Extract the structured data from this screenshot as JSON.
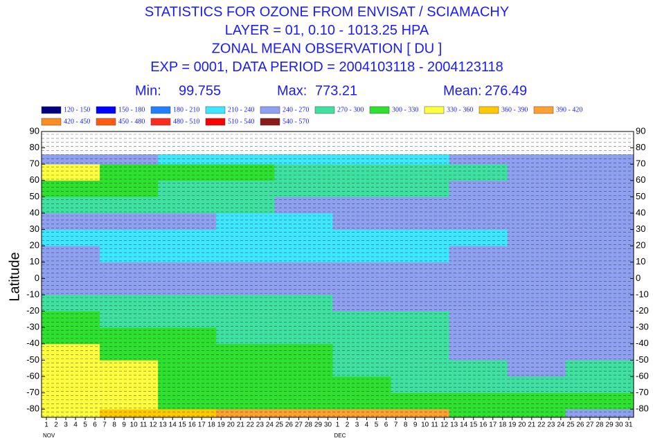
{
  "chart_data": {
    "type": "heatmap",
    "title_lines": [
      "STATISTICS FOR OZONE FROM ENVISAT / SCIAMACHY",
      "LAYER = 01, 0.10 - 1013.25 HPA",
      "ZONAL MEAN OBSERVATION [ DU ]",
      "EXP = 0001, DATA PERIOD = 2004103118 - 2004123118"
    ],
    "stats": [
      {
        "label": "Min:",
        "value": 99.755
      },
      {
        "label": "Max:",
        "value": 773.21
      },
      {
        "label": "Mean:",
        "value": 276.49
      }
    ],
    "ylabel": "Latitude",
    "levels": [
      120,
      150,
      180,
      210,
      240,
      270,
      300,
      330,
      360,
      390,
      420,
      450,
      480,
      510,
      540,
      570
    ],
    "legend_labels": [
      "120 - 150",
      "150 - 180",
      "180 - 210",
      "210 - 240",
      "240 - 270",
      "270 - 300",
      "300 - 330",
      "330 - 360",
      "360 - 390",
      "390 - 420",
      "420 - 450",
      "450 - 480",
      "480 - 510",
      "510 - 540",
      "540 - 570"
    ],
    "colors": [
      "#000080",
      "#0000ff",
      "#1e80ff",
      "#3fe6ff",
      "#8fa0f0",
      "#40e0a0",
      "#30e030",
      "#ffff40",
      "#ffc800",
      "#ffa030",
      "#ff8c20",
      "#ff5a10",
      "#ff2a20",
      "#ff0000",
      "#8b1a1a"
    ],
    "xlim": [
      0.5,
      61.5
    ],
    "ylim": [
      -85,
      90
    ],
    "yticks": [
      90,
      80,
      70,
      60,
      50,
      40,
      30,
      20,
      10,
      0,
      -10,
      -20,
      -30,
      -40,
      -50,
      -60,
      -70,
      -80
    ],
    "xticks": [
      1,
      2,
      3,
      4,
      5,
      6,
      7,
      8,
      9,
      10,
      11,
      12,
      13,
      14,
      15,
      16,
      17,
      18,
      19,
      20,
      21,
      22,
      23,
      24,
      25,
      26,
      27,
      28,
      29,
      30,
      {
        "value": 31,
        "label": "1"
      },
      {
        "value": 32,
        "label": "2"
      },
      {
        "value": 33,
        "label": "3"
      },
      {
        "value": 34,
        "label": "4"
      },
      {
        "value": 35,
        "label": "5"
      },
      {
        "value": 36,
        "label": "6"
      },
      {
        "value": 37,
        "label": "7"
      },
      {
        "value": 38,
        "label": "8"
      },
      {
        "value": 39,
        "label": "9"
      },
      {
        "value": 40,
        "label": "10"
      },
      {
        "value": 41,
        "label": "11"
      },
      {
        "value": 42,
        "label": "12"
      },
      {
        "value": 43,
        "label": "13"
      },
      {
        "value": 44,
        "label": "14"
      },
      {
        "value": 45,
        "label": "15"
      },
      {
        "value": 46,
        "label": "16"
      },
      {
        "value": 47,
        "label": "17"
      },
      {
        "value": 48,
        "label": "18"
      },
      {
        "value": 49,
        "label": "19"
      },
      {
        "value": 50,
        "label": "20"
      },
      {
        "value": 51,
        "label": "21"
      },
      {
        "value": 52,
        "label": "22"
      },
      {
        "value": 53,
        "label": "23"
      },
      {
        "value": 54,
        "label": "24"
      },
      {
        "value": 55,
        "label": "25"
      },
      {
        "value": 56,
        "label": "26"
      },
      {
        "value": 57,
        "label": "27"
      },
      {
        "value": 58,
        "label": "28"
      },
      {
        "value": 59,
        "label": "29"
      },
      {
        "value": 60,
        "label": "30"
      },
      {
        "value": 61,
        "label": "31"
      }
    ],
    "xtick_highlight": {
      "color": "#e00000",
      "values": [
        7,
        14,
        21,
        28,
        35,
        42,
        49,
        56
      ]
    },
    "month_ticks": [
      {
        "value": 1,
        "label": "NOV"
      },
      {
        "value": 31,
        "label": "DEC"
      }
    ],
    "x_edges": [
      0.5,
      6.5,
      12.5,
      18.5,
      24.5,
      30.5,
      36.5,
      42.5,
      48.5,
      54.5,
      61.5
    ],
    "y_edges": [
      -85,
      -80,
      -70,
      -60,
      -50,
      -40,
      -30,
      -20,
      -10,
      0,
      10,
      20,
      30,
      40,
      50,
      60,
      70,
      76
    ],
    "z": [
      [
        350,
        365,
        385,
        395,
        395,
        395,
        390,
        310,
        305,
        260
      ],
      [
        335,
        330,
        325,
        320,
        315,
        315,
        310,
        305,
        300,
        300
      ],
      [
        345,
        330,
        320,
        310,
        300,
        300,
        290,
        280,
        280,
        290
      ],
      [
        345,
        335,
        320,
        310,
        300,
        295,
        285,
        270,
        265,
        270
      ],
      [
        340,
        325,
        315,
        305,
        300,
        290,
        280,
        265,
        260,
        265
      ],
      [
        320,
        310,
        300,
        295,
        290,
        285,
        275,
        260,
        255,
        260
      ],
      [
        300,
        295,
        295,
        290,
        285,
        280,
        270,
        260,
        255,
        255
      ],
      [
        275,
        275,
        275,
        270,
        270,
        265,
        260,
        255,
        255,
        255
      ],
      [
        255,
        255,
        255,
        255,
        255,
        255,
        255,
        255,
        255,
        255
      ],
      [
        255,
        250,
        250,
        250,
        250,
        250,
        250,
        250,
        252,
        250
      ],
      [
        240,
        235,
        235,
        232,
        230,
        230,
        235,
        240,
        242,
        240
      ],
      [
        235,
        230,
        230,
        225,
        225,
        225,
        230,
        235,
        240,
        240
      ],
      [
        250,
        245,
        240,
        235,
        235,
        240,
        245,
        250,
        255,
        250
      ],
      [
        285,
        280,
        275,
        270,
        265,
        260,
        255,
        255,
        265,
        260
      ],
      [
        310,
        300,
        295,
        285,
        285,
        280,
        270,
        265,
        265,
        260
      ],
      [
        330,
        320,
        310,
        300,
        295,
        290,
        285,
        270,
        260,
        255
      ],
      [
        260,
        240,
        230,
        220,
        220,
        215,
        210,
        240,
        250,
        245
      ]
    ]
  }
}
